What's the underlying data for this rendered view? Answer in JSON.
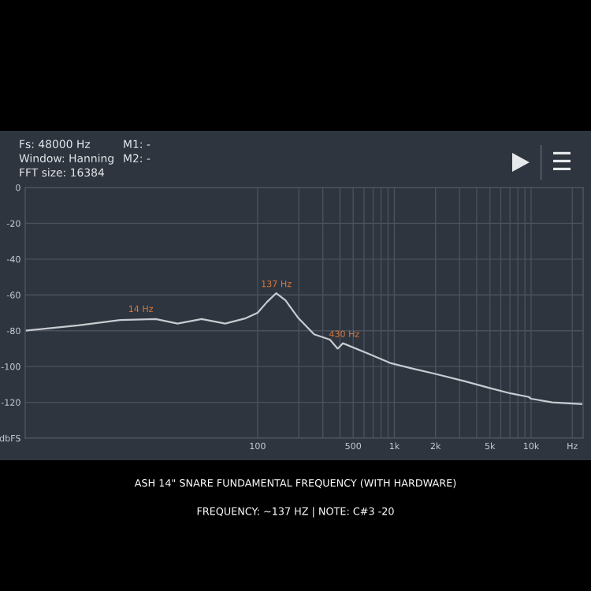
{
  "chart_data": {
    "type": "line",
    "title": "ASH 14\" SNARE FUNDAMENTAL FREQUENCY (WITH HARDWARE)",
    "subtitle": "FREQUENCY: ~137 HZ | NOTE: C#3 -20",
    "x": [
      2,
      4.9,
      9.9,
      18,
      26,
      39,
      58,
      82,
      100,
      117,
      137,
      160,
      199,
      259,
      338,
      385,
      421,
      654,
      930,
      1330,
      1970,
      3200,
      4970,
      7060,
      9600,
      10000,
      14300,
      23300
    ],
    "series": [
      {
        "color": "#c8cbd0",
        "values": [
          -80,
          -77,
          -74,
          -73.5,
          -76,
          -73.5,
          -76,
          -73,
          -70,
          -64,
          -59,
          -63,
          -73,
          -82,
          -85,
          -90,
          -87,
          -93,
          -98,
          -101,
          -104,
          -108,
          -112,
          -115,
          -117,
          -118,
          -120,
          -121
        ]
      }
    ],
    "annotations": [
      "Fs: 48000 Hz",
      "Window: Hanning",
      "FFT size: 16384",
      "M1: -",
      "M2: -",
      {
        "text": "14 Hz",
        "x": 14,
        "y": -73
      },
      {
        "text": "137 Hz",
        "x": 137,
        "y": -59
      },
      {
        "text": "430 Hz",
        "x": 430,
        "y": -87
      }
    ],
    "log": "x",
    "xlim": [
      2,
      24000
    ],
    "xticks": [
      {
        "value": 100,
        "label": "100"
      },
      {
        "value": 200,
        "label": null
      },
      {
        "value": 300,
        "label": null
      },
      {
        "value": 400,
        "label": null
      },
      {
        "value": 500,
        "label": "500"
      },
      {
        "value": 600,
        "label": null
      },
      {
        "value": 700,
        "label": null
      },
      {
        "value": 800,
        "label": null
      },
      {
        "value": 900,
        "label": null
      },
      {
        "value": 1000,
        "label": "1k"
      },
      {
        "value": 2000,
        "label": "2k"
      },
      {
        "value": 3000,
        "label": null
      },
      {
        "value": 4000,
        "label": null
      },
      {
        "value": 5000,
        "label": "5k"
      },
      {
        "value": 6000,
        "label": null
      },
      {
        "value": 7000,
        "label": null
      },
      {
        "value": 8000,
        "label": null
      },
      {
        "value": 9000,
        "label": null
      },
      {
        "value": 10000,
        "label": "10k"
      },
      {
        "value": 20000,
        "label": "Hz"
      }
    ],
    "ylim": [
      -140,
      0
    ],
    "yticks": [
      0,
      -20,
      -40,
      -60,
      -80,
      -100,
      -120,
      {
        "value": -140,
        "label": "dbFS"
      }
    ],
    "grid": true,
    "line_style": "solid",
    "marker": "none"
  }
}
